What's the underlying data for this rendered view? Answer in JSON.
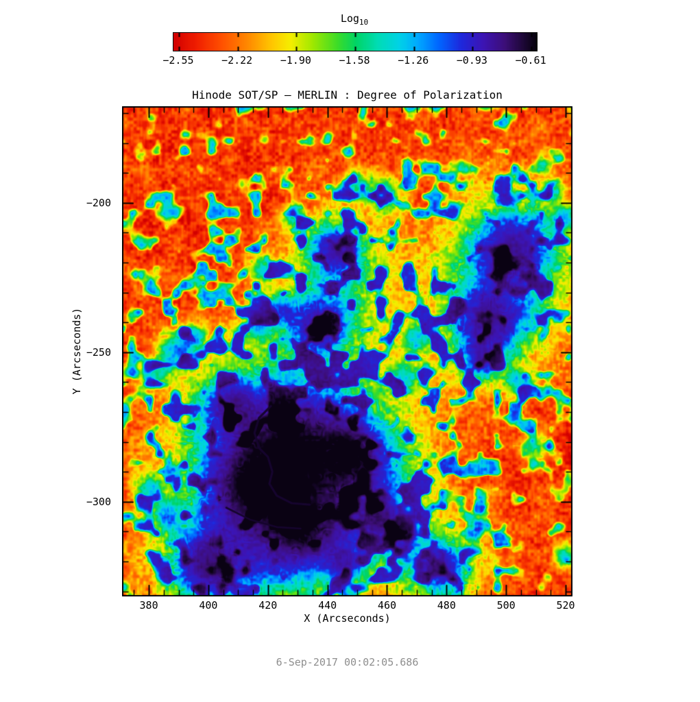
{
  "chart_data": {
    "type": "heatmap",
    "title": "Hinode SOT/SP – MERLIN : Degree of Polarization",
    "xlabel": "X (Arcseconds)",
    "ylabel": "Y (Arcseconds)",
    "footer_timestamp": "6-Sep-2017 00:02:05.686",
    "x_range": [
      371.0,
      522.3
    ],
    "y_range": [
      -331.7,
      -167.7
    ],
    "x_ticks": [
      380,
      400,
      420,
      440,
      460,
      480,
      500,
      520
    ],
    "x_tick_labels": [
      "380",
      "400",
      "420",
      "440",
      "460",
      "480",
      "500",
      "520"
    ],
    "x_minor_step": 5,
    "y_ticks": [
      -200,
      -250,
      -300
    ],
    "y_tick_labels": [
      "−200",
      "−250",
      "−300"
    ],
    "y_minor_step": 10,
    "grid": false,
    "legend_position": "none",
    "colorbar": {
      "title_main": "Log",
      "title_sub": "10",
      "tick_values": [
        -2.55,
        -2.22,
        -1.9,
        -1.58,
        -1.26,
        -0.93,
        -0.61
      ],
      "tick_labels": [
        "−2.55",
        "−2.22",
        "−1.90",
        "−1.58",
        "−1.26",
        "−0.93",
        "−0.61"
      ],
      "value_range": [
        -2.57,
        -0.59
      ],
      "orientation": "horizontal"
    },
    "colormap": [
      [
        0.0,
        "#d20000"
      ],
      [
        0.06,
        "#f01e00"
      ],
      [
        0.13,
        "#ff5000"
      ],
      [
        0.2,
        "#ff8700"
      ],
      [
        0.27,
        "#ffc800"
      ],
      [
        0.32,
        "#f5ee00"
      ],
      [
        0.38,
        "#a0e800"
      ],
      [
        0.45,
        "#3cdc28"
      ],
      [
        0.5,
        "#00d464"
      ],
      [
        0.56,
        "#00dcb4"
      ],
      [
        0.62,
        "#00d2e6"
      ],
      [
        0.67,
        "#00aaff"
      ],
      [
        0.73,
        "#0064ff"
      ],
      [
        0.79,
        "#1e28dc"
      ],
      [
        0.85,
        "#3c14b4"
      ],
      [
        0.91,
        "#3c0e78"
      ],
      [
        0.96,
        "#1e0838"
      ],
      [
        1.0,
        "#05010a"
      ]
    ],
    "field_model": {
      "background": {
        "base": 0.105,
        "fine_amp": 0.075,
        "med_amp": 0.048,
        "coarse_amp": 0.028,
        "stripe_amp": 0.02,
        "net_threshold": 0.6,
        "net_gain": 2.6,
        "activity_center": [
          443,
          -262
        ],
        "activity_sigma": 52
      },
      "blobs": [
        {
          "x": 502.5,
          "y": -214.5,
          "r": 12,
          "a": 0.62,
          "s": 14
        },
        {
          "x": 494,
          "y": -240.5,
          "r": 10.5,
          "a": 0.6,
          "s": 12
        },
        {
          "x": 443,
          "y": -215.5,
          "r": 8.5,
          "a": 0.58,
          "s": 12
        },
        {
          "x": 437.5,
          "y": -241.5,
          "r": 8.5,
          "a": 0.56,
          "s": 10
        },
        {
          "x": 448.5,
          "y": -283.5,
          "r": 9.5,
          "a": 0.6,
          "s": 12
        },
        {
          "x": 427,
          "y": -282,
          "r": 17,
          "a": 0.64,
          "s": 16
        },
        {
          "x": 414,
          "y": -295,
          "r": 12,
          "a": 0.58,
          "s": 12
        },
        {
          "x": 399,
          "y": -321.5,
          "r": 10,
          "a": 0.6,
          "s": 12
        },
        {
          "x": 478.5,
          "y": -322,
          "r": 9,
          "a": 0.58,
          "s": 12
        },
        {
          "x": 431,
          "y": -309,
          "r": 10,
          "a": 0.5,
          "s": 10
        },
        {
          "x": 407,
          "y": -268,
          "r": 8,
          "a": 0.46,
          "s": 8
        }
      ],
      "veils": [
        {
          "x": 430,
          "y": -288,
          "r": 34,
          "a": 0.3
        },
        {
          "x": 440,
          "y": -310,
          "r": 22,
          "a": 0.24
        },
        {
          "x": 415,
          "y": -318,
          "r": 18,
          "a": 0.22
        },
        {
          "x": 455,
          "y": -300,
          "r": 16,
          "a": 0.2
        },
        {
          "x": 498,
          "y": -227,
          "r": 20,
          "a": 0.2
        },
        {
          "x": 445,
          "y": -228,
          "r": 16,
          "a": 0.16
        }
      ],
      "patches": [
        {
          "x": 459,
          "y": -197,
          "r": 6,
          "a": 0.5
        },
        {
          "x": 449,
          "y": -194,
          "r": 5,
          "a": 0.42
        },
        {
          "x": 389,
          "y": -250,
          "r": 6,
          "a": 0.5
        },
        {
          "x": 395,
          "y": -245,
          "r": 5,
          "a": 0.45
        },
        {
          "x": 382,
          "y": -257,
          "r": 5,
          "a": 0.4
        },
        {
          "x": 492,
          "y": -253,
          "r": 7,
          "a": 0.5
        },
        {
          "x": 504,
          "y": -260,
          "r": 5,
          "a": 0.42
        },
        {
          "x": 466,
          "y": -258,
          "r": 6,
          "a": 0.4
        },
        {
          "x": 470,
          "y": -245,
          "r": 5,
          "a": 0.4
        },
        {
          "x": 424,
          "y": -236,
          "r": 6,
          "a": 0.45
        },
        {
          "x": 416,
          "y": -241,
          "r": 5,
          "a": 0.4
        },
        {
          "x": 458,
          "y": -306,
          "r": 7,
          "a": 0.5
        },
        {
          "x": 465,
          "y": -313,
          "r": 6,
          "a": 0.45
        },
        {
          "x": 446,
          "y": -321,
          "r": 6,
          "a": 0.45
        },
        {
          "x": 520,
          "y": -318,
          "r": 5,
          "a": 0.4
        },
        {
          "x": 380,
          "y": -296,
          "r": 5,
          "a": 0.4
        },
        {
          "x": 386,
          "y": -305,
          "r": 5,
          "a": 0.38
        },
        {
          "x": 418,
          "y": -222,
          "r": 5,
          "a": 0.4
        },
        {
          "x": 428,
          "y": -205,
          "r": 4,
          "a": 0.35
        },
        {
          "x": 510,
          "y": -282,
          "r": 5,
          "a": 0.35
        },
        {
          "x": 520,
          "y": -205,
          "r": 5,
          "a": 0.4
        },
        {
          "x": 516,
          "y": -196,
          "r": 4,
          "a": 0.38
        }
      ],
      "filaments": [
        {
          "color": "#16052e",
          "width": 3.2,
          "points": [
            [
              421,
              -268
            ],
            [
              417,
              -272
            ],
            [
              415.5,
              -277
            ],
            [
              417,
              -282
            ],
            [
              420,
              -285
            ],
            [
              421.5,
              -290
            ],
            [
              420.5,
              -294
            ],
            [
              423,
              -298
            ],
            [
              428,
              -300.5
            ],
            [
              434,
              -301
            ]
          ]
        },
        {
          "color": "#16052e",
          "width": 2.6,
          "points": [
            [
              406,
              -302
            ],
            [
              414,
              -306
            ],
            [
              423,
              -308.5
            ],
            [
              431,
              -309
            ]
          ]
        }
      ]
    }
  },
  "colors": {
    "axis": "#000000",
    "text": "#000000",
    "timestamp_text": "#8e8e8e",
    "page_bg": "#ffffff"
  }
}
